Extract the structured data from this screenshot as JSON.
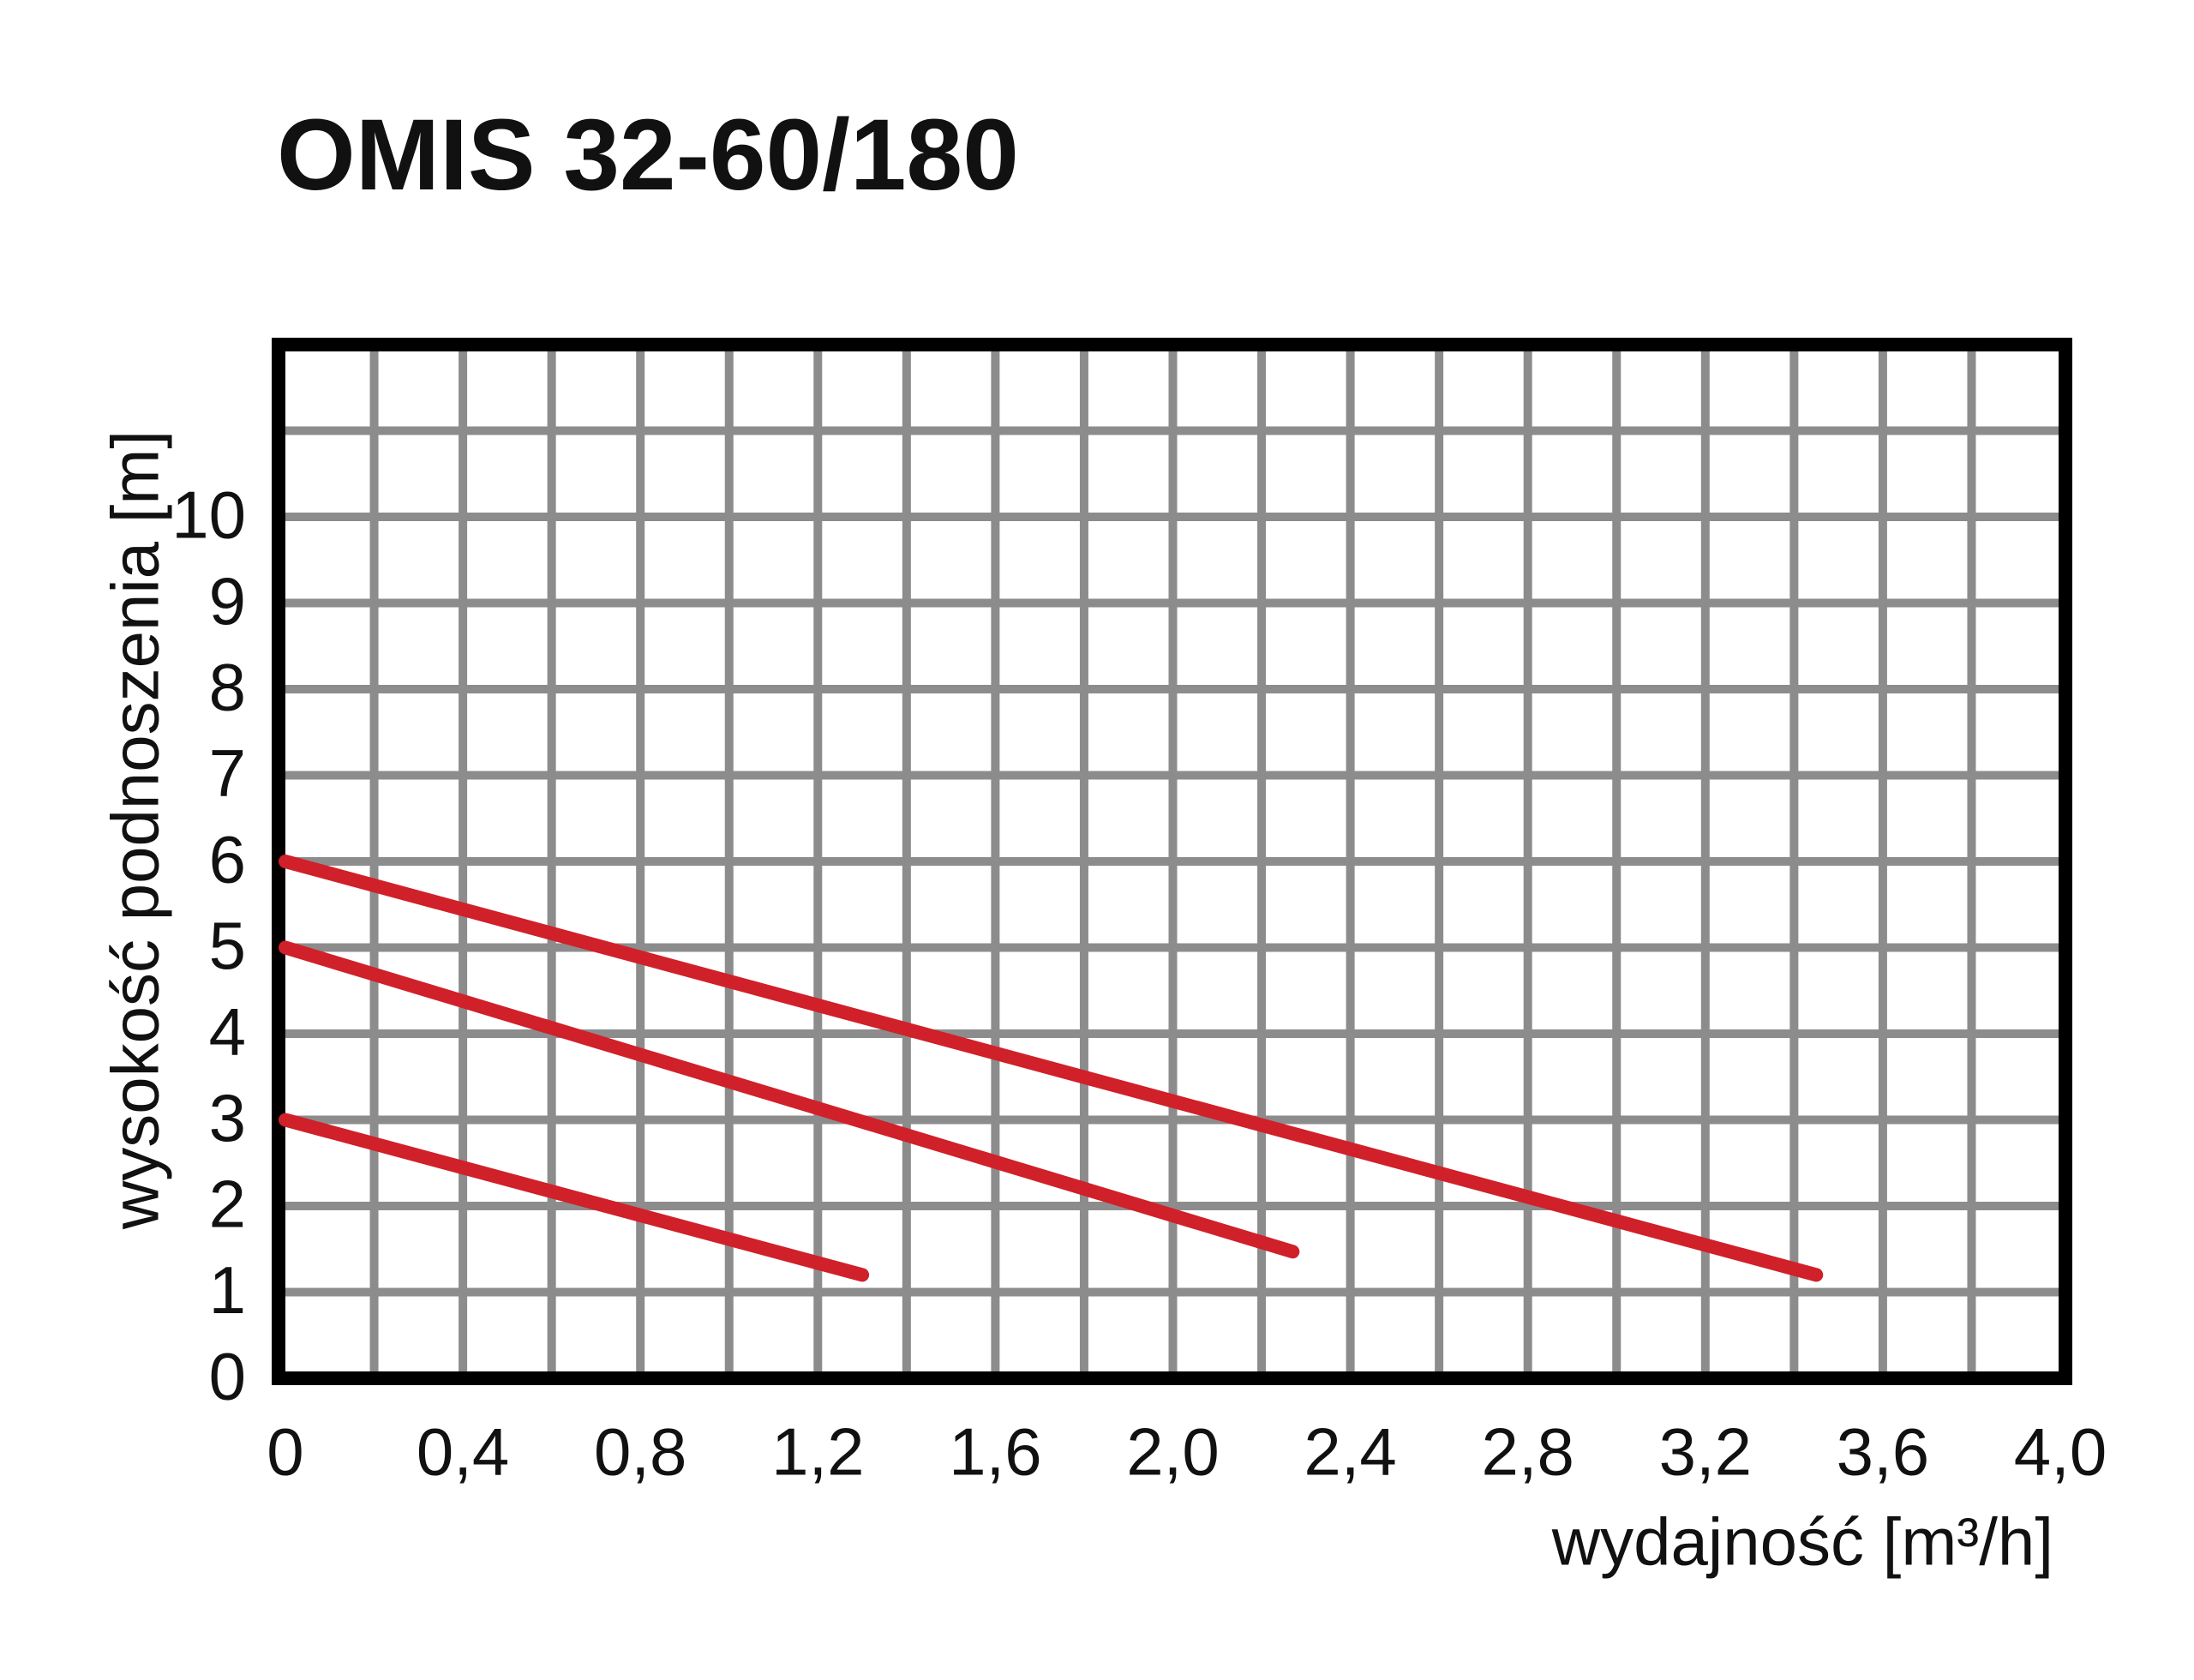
{
  "chart_data": {
    "type": "line",
    "title": "OMIS 32-60/180",
    "x_label": "wydajność [m³/h]",
    "y_label": "wysokość podnoszenia [m]",
    "xlim": [
      0,
      4.0
    ],
    "ylim": [
      0,
      12
    ],
    "xticks": [
      0,
      {
        "value": 0.4,
        "label": "0,4"
      },
      {
        "value": 0.8,
        "label": "0,8"
      },
      {
        "value": 1.2,
        "label": "1,2"
      },
      {
        "value": 1.6,
        "label": "1,6"
      },
      {
        "value": 2.0,
        "label": "2,0"
      },
      {
        "value": 2.4,
        "label": "2,4"
      },
      {
        "value": 2.8,
        "label": "2,8"
      },
      {
        "value": 3.2,
        "label": "3,2"
      },
      {
        "value": 3.6,
        "label": "3,6"
      },
      {
        "value": 4.0,
        "label": "4,0"
      }
    ],
    "yticks": [
      0,
      1,
      2,
      3,
      4,
      5,
      6,
      7,
      8,
      9,
      10
    ],
    "xgrid": [
      0.2,
      0.4,
      0.6,
      0.8,
      1.0,
      1.2,
      1.4,
      1.6,
      1.8,
      2.0,
      2.2,
      2.4,
      2.6,
      2.8,
      3.0,
      3.2,
      3.4,
      3.6,
      3.8
    ],
    "ygrid": [
      1,
      2,
      3,
      4,
      5,
      6,
      7,
      8,
      9,
      10,
      11
    ],
    "grid": true,
    "series": [
      {
        "color": "#d0202a",
        "x": [
          0,
          3.45
        ],
        "values": [
          6,
          1.2
        ]
      },
      {
        "color": "#d0202a",
        "x": [
          0,
          2.27
        ],
        "values": [
          5,
          1.47
        ]
      },
      {
        "color": "#d0202a",
        "x": [
          0,
          1.3
        ],
        "values": [
          3,
          1.2
        ]
      }
    ]
  }
}
